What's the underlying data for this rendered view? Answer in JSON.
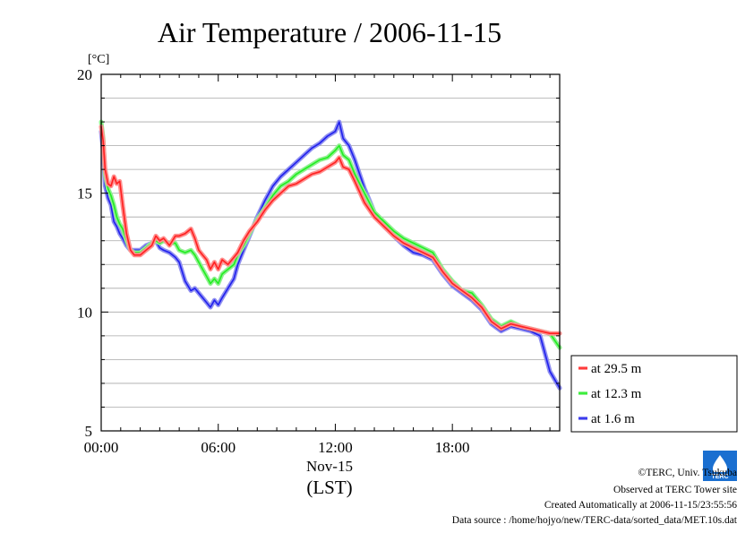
{
  "chart_data": {
    "type": "line",
    "title": "Air Temperature / 2006-11-15",
    "ylabel": "[°C]",
    "xlabel_date": "Nov-15",
    "xlabel_unit": "(LST)",
    "ylim": [
      5,
      20
    ],
    "xlim": [
      0,
      23.5
    ],
    "grid": "horizontal",
    "legend_position": "right",
    "x_ticks": [
      {
        "v": 0,
        "label": "00:00"
      },
      {
        "v": 6,
        "label": "06:00"
      },
      {
        "v": 12,
        "label": "12:00"
      },
      {
        "v": 18,
        "label": "18:00"
      }
    ],
    "y_ticks": [
      {
        "v": 5,
        "label": "5"
      },
      {
        "v": 10,
        "label": "10"
      },
      {
        "v": 15,
        "label": "15"
      },
      {
        "v": 20,
        "label": "20"
      }
    ],
    "series": [
      {
        "name": "at 29.5 m",
        "color": "#ff2020",
        "halo": "#ff9090",
        "x": [
          0,
          0.1,
          0.2,
          0.35,
          0.5,
          0.65,
          0.8,
          0.95,
          1.1,
          1.3,
          1.5,
          1.7,
          2,
          2.3,
          2.6,
          2.8,
          3,
          3.2,
          3.5,
          3.8,
          4,
          4.3,
          4.6,
          4.8,
          5,
          5.2,
          5.4,
          5.6,
          5.8,
          6,
          6.2,
          6.5,
          6.8,
          7,
          7.3,
          7.6,
          8,
          8.4,
          8.8,
          9.2,
          9.6,
          10,
          10.4,
          10.8,
          11.2,
          11.6,
          12,
          12.2,
          12.4,
          12.7,
          13,
          13.5,
          14,
          14.5,
          15,
          15.5,
          16,
          16.5,
          17,
          17.5,
          18,
          18.5,
          19,
          19.5,
          20,
          20.5,
          21,
          21.5,
          22,
          22.5,
          23,
          23.5
        ],
        "y": [
          17.8,
          17.2,
          16,
          15.4,
          15.3,
          15.7,
          15.4,
          15.5,
          14.5,
          13.3,
          12.6,
          12.4,
          12.4,
          12.6,
          12.8,
          13.2,
          13,
          13.1,
          12.8,
          13.2,
          13.2,
          13.3,
          13.5,
          13.1,
          12.6,
          12.4,
          12.2,
          11.8,
          12.1,
          11.8,
          12.2,
          12.0,
          12.3,
          12.5,
          13.0,
          13.4,
          13.8,
          14.3,
          14.7,
          15.0,
          15.3,
          15.4,
          15.6,
          15.8,
          15.9,
          16.1,
          16.3,
          16.5,
          16.1,
          16.0,
          15.5,
          14.6,
          14.0,
          13.6,
          13.2,
          12.9,
          12.7,
          12.5,
          12.3,
          11.7,
          11.2,
          10.9,
          10.6,
          10.2,
          9.6,
          9.3,
          9.5,
          9.4,
          9.3,
          9.2,
          9.1,
          9.1
        ]
      },
      {
        "name": "at 12.3 m",
        "color": "#20ee20",
        "halo": "#90f090",
        "x": [
          0,
          0.1,
          0.2,
          0.35,
          0.5,
          0.65,
          0.8,
          0.95,
          1.1,
          1.3,
          1.5,
          1.7,
          2,
          2.3,
          2.6,
          2.8,
          3,
          3.2,
          3.5,
          3.8,
          4,
          4.3,
          4.6,
          4.8,
          5,
          5.2,
          5.4,
          5.6,
          5.8,
          6,
          6.2,
          6.5,
          6.8,
          7,
          7.3,
          7.6,
          8,
          8.4,
          8.8,
          9.2,
          9.6,
          10,
          10.4,
          10.8,
          11.2,
          11.6,
          12,
          12.2,
          12.4,
          12.7,
          13,
          13.5,
          14,
          14.5,
          15,
          15.5,
          16,
          16.5,
          17,
          17.5,
          18,
          18.5,
          19,
          19.5,
          20,
          20.5,
          21,
          21.5,
          22,
          22.5,
          23,
          23.5
        ],
        "y": [
          18.0,
          17.3,
          15.8,
          15.2,
          14.9,
          14.5,
          14.0,
          13.7,
          13.5,
          13.0,
          12.6,
          12.5,
          12.5,
          12.7,
          12.9,
          13.0,
          12.9,
          13.0,
          12.9,
          12.9,
          12.6,
          12.5,
          12.6,
          12.4,
          12.1,
          11.8,
          11.5,
          11.2,
          11.4,
          11.2,
          11.6,
          11.8,
          12.0,
          12.4,
          12.8,
          13.3,
          13.9,
          14.4,
          14.9,
          15.3,
          15.5,
          15.8,
          16.0,
          16.2,
          16.4,
          16.5,
          16.8,
          17.0,
          16.6,
          16.4,
          15.8,
          15.0,
          14.2,
          13.8,
          13.4,
          13.1,
          12.9,
          12.7,
          12.5,
          11.8,
          11.3,
          10.9,
          10.8,
          10.3,
          9.7,
          9.4,
          9.6,
          9.4,
          9.3,
          9.2,
          9.1,
          8.5
        ]
      },
      {
        "name": "at 1.6 m",
        "color": "#2020ee",
        "halo": "#9090f0",
        "x": [
          0,
          0.1,
          0.2,
          0.35,
          0.5,
          0.65,
          0.8,
          0.95,
          1.1,
          1.3,
          1.5,
          1.7,
          2,
          2.3,
          2.6,
          2.8,
          3,
          3.2,
          3.5,
          3.8,
          4,
          4.3,
          4.6,
          4.8,
          5,
          5.2,
          5.4,
          5.6,
          5.8,
          6,
          6.2,
          6.5,
          6.8,
          7,
          7.3,
          7.6,
          8,
          8.4,
          8.8,
          9.2,
          9.6,
          10,
          10.4,
          10.8,
          11.2,
          11.6,
          12,
          12.2,
          12.4,
          12.7,
          13,
          13.5,
          14,
          14.5,
          15,
          15.5,
          16,
          16.5,
          17,
          17.5,
          18,
          18.5,
          19,
          19.5,
          20,
          20.5,
          21,
          21.5,
          22,
          22.5,
          23,
          23.5
        ],
        "y": [
          17.6,
          16.8,
          15.3,
          14.8,
          14.5,
          13.8,
          13.6,
          13.3,
          13.1,
          12.8,
          12.6,
          12.6,
          12.6,
          12.8,
          12.9,
          13.0,
          12.7,
          12.6,
          12.5,
          12.3,
          12.1,
          11.3,
          10.9,
          11.0,
          10.8,
          10.6,
          10.4,
          10.2,
          10.5,
          10.3,
          10.6,
          11.0,
          11.4,
          12.0,
          12.6,
          13.2,
          14.0,
          14.7,
          15.3,
          15.7,
          16.0,
          16.3,
          16.6,
          16.9,
          17.1,
          17.4,
          17.6,
          18.0,
          17.3,
          17.0,
          16.4,
          15.2,
          14.2,
          13.6,
          13.2,
          12.8,
          12.5,
          12.4,
          12.2,
          11.6,
          11.1,
          10.8,
          10.5,
          10.1,
          9.5,
          9.2,
          9.4,
          9.3,
          9.2,
          9.0,
          7.5,
          6.8
        ]
      }
    ]
  },
  "footer": {
    "copyright": "©TERC, Univ. Tsukuba",
    "observed": "Observed at TERC Tower site",
    "created": "Created Automatically at 2006-11-15/23:55:56",
    "source": "Data source : /home/hojyo/new/TERC-data/sorted_data/MET.10s.dat",
    "logo_text": "TERC"
  }
}
